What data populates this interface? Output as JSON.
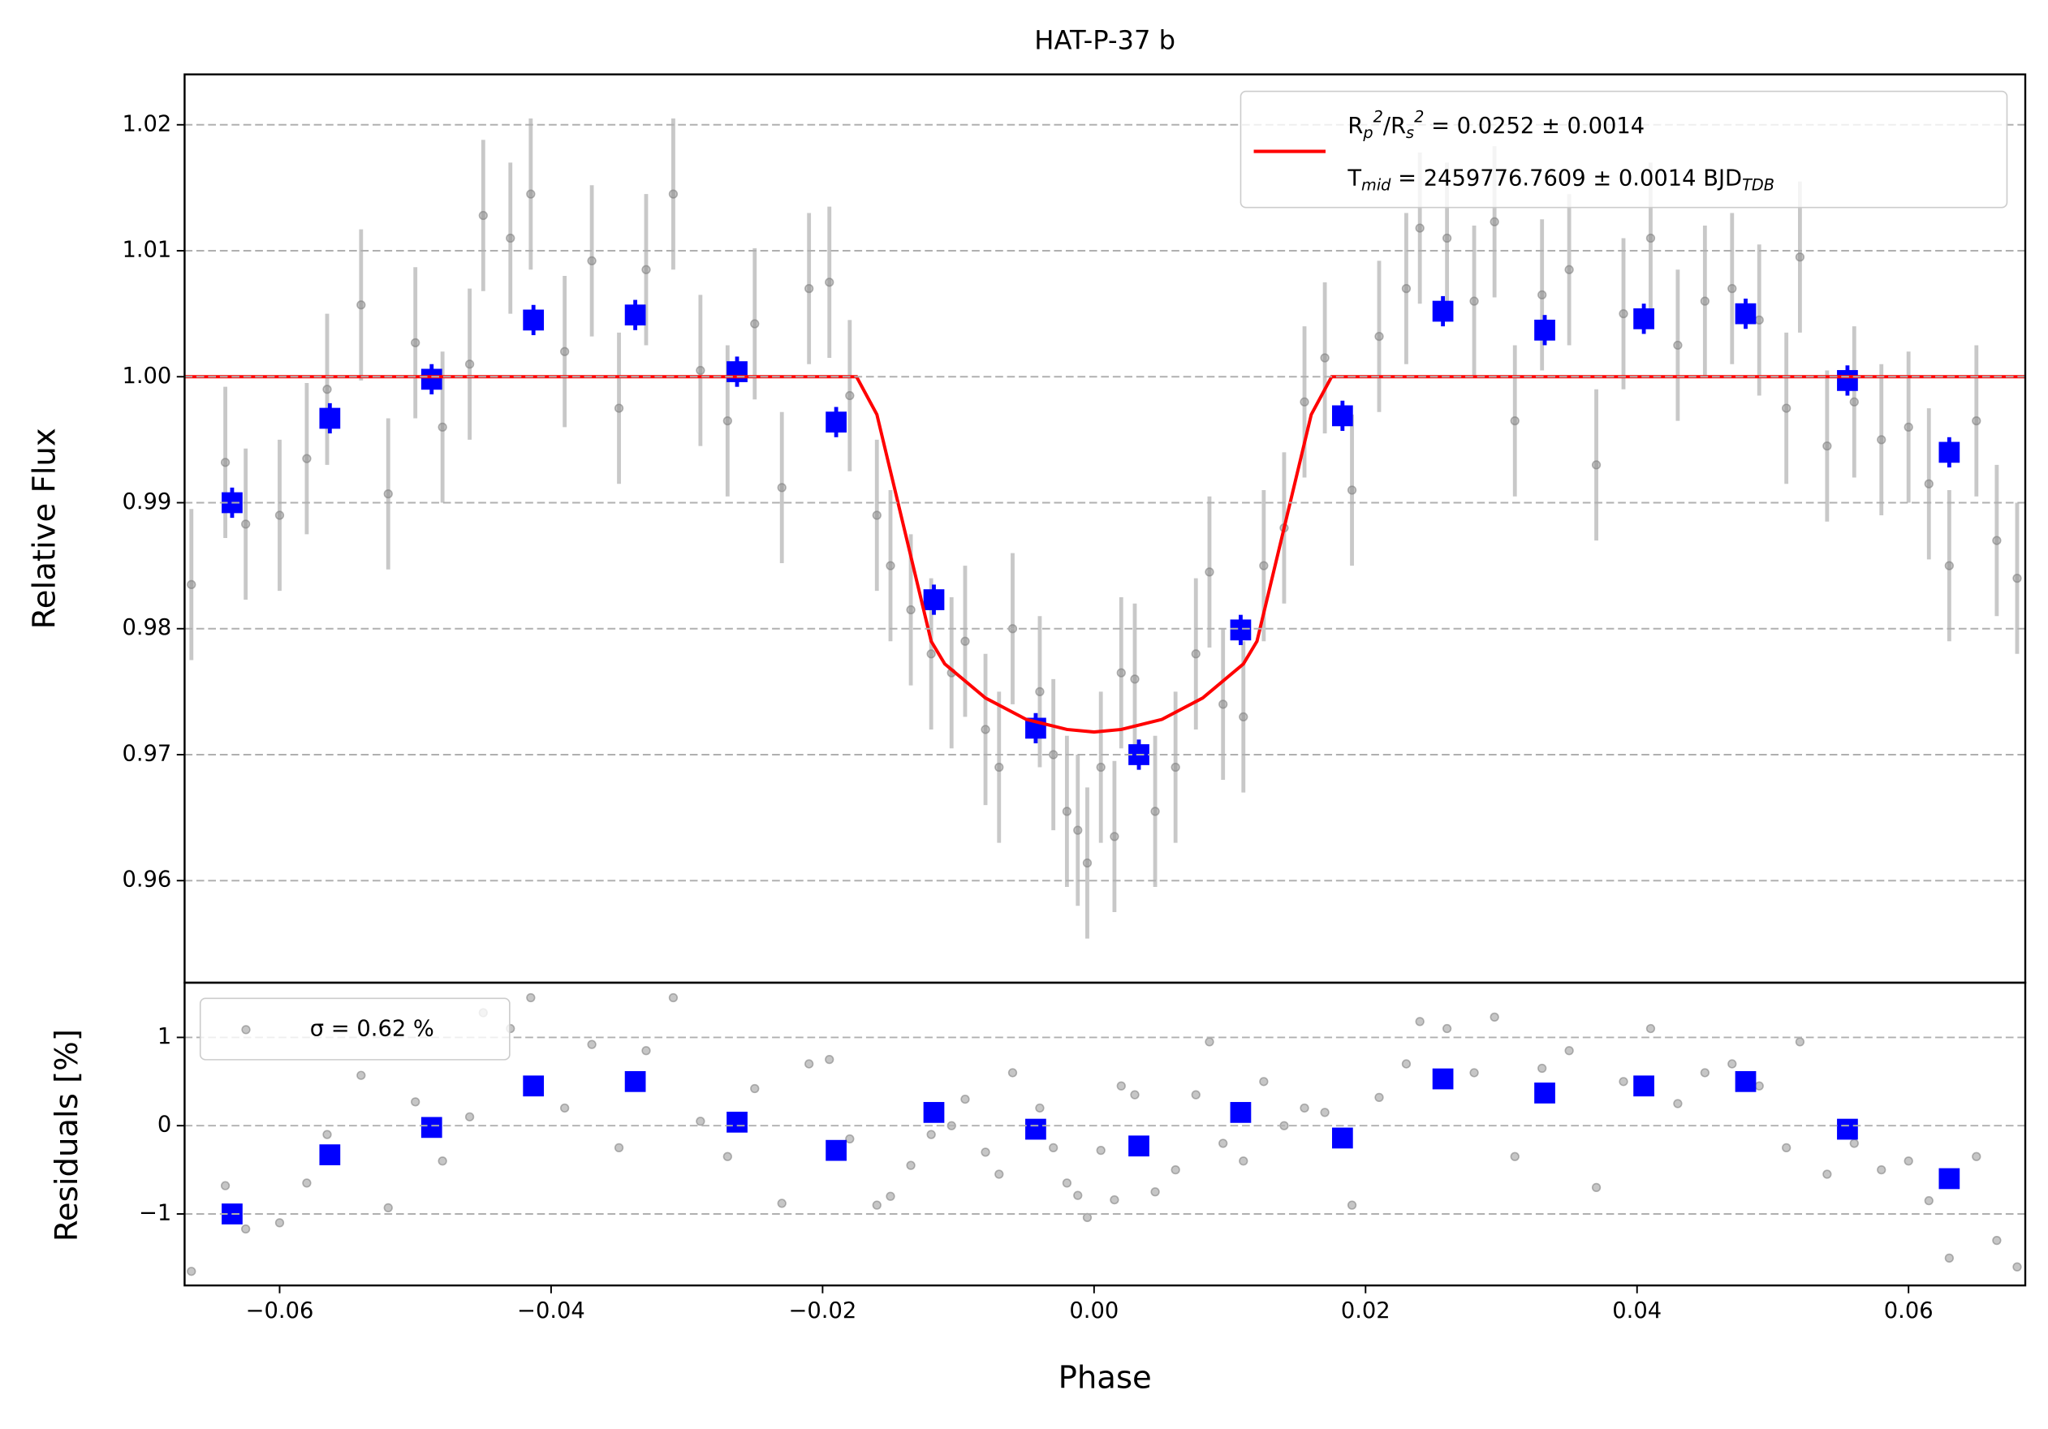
{
  "chart_data": [
    {
      "type": "scatter",
      "title": "HAT-P-37 b",
      "y_label": "Relative Flux",
      "xlim": [
        -0.067,
        0.0686
      ],
      "ylim": [
        0.9519,
        1.024
      ],
      "yticks": [
        0.96,
        0.97,
        0.98,
        0.99,
        {
          "value": 1,
          "label": "1.00"
        },
        1.01,
        1.02
      ],
      "grid": true,
      "legend_label": [
        "R_p^2/R_s^2 = 0.0252 ± 0.0014",
        "T_{mid} = 2459776.7609 ± 0.0014 BJD_{TDB}"
      ],
      "legend_corner": "upper right",
      "series": [
        {
          "kind": "errorbar",
          "marker": "circle",
          "color": "#808080",
          "error": 0.006,
          "x": [
            -0.0665,
            -0.064,
            -0.0625,
            -0.06,
            -0.058,
            -0.0565,
            -0.054,
            -0.052,
            -0.05,
            -0.048,
            -0.046,
            -0.045,
            -0.043,
            -0.0415,
            -0.039,
            -0.037,
            -0.035,
            -0.033,
            -0.031,
            -0.029,
            -0.027,
            -0.025,
            -0.023,
            -0.021,
            -0.0195,
            -0.018,
            -0.016,
            -0.015,
            -0.0135,
            -0.012,
            -0.0105,
            -0.0095,
            -0.008,
            -0.007,
            -0.006,
            -0.004,
            -0.003,
            -0.002,
            -0.0012,
            -0.0005,
            0.0005,
            0.0015,
            0.002,
            0.003,
            0.0045,
            0.006,
            0.0075,
            0.0085,
            0.0095,
            0.011,
            0.0125,
            0.014,
            0.0155,
            0.017,
            0.019,
            0.021,
            0.023,
            0.024,
            0.026,
            0.028,
            0.0295,
            0.031,
            0.033,
            0.035,
            0.037,
            0.039,
            0.041,
            0.043,
            0.045,
            0.047,
            0.049,
            0.051,
            0.052,
            0.054,
            0.056,
            0.058,
            0.06,
            0.0615,
            0.063,
            0.065,
            0.0665,
            0.068
          ],
          "values": [
            0.9835,
            0.9932,
            0.9883,
            0.989,
            0.9935,
            0.999,
            1.0057,
            0.9907,
            1.0027,
            0.996,
            1.001,
            1.0128,
            1.011,
            1.0145,
            1.002,
            1.0092,
            0.9975,
            1.0085,
            1.0145,
            1.0005,
            0.9965,
            1.0042,
            0.9912,
            1.007,
            1.0075,
            0.9985,
            0.989,
            0.985,
            0.9815,
            0.978,
            0.9765,
            0.979,
            0.972,
            0.969,
            0.98,
            0.975,
            0.97,
            0.9655,
            0.964,
            0.9614,
            0.969,
            0.9635,
            0.9765,
            0.976,
            0.9655,
            0.969,
            0.978,
            0.9845,
            0.974,
            0.973,
            0.985,
            0.988,
            0.998,
            1.0015,
            0.991,
            1.0032,
            1.007,
            1.0118,
            1.011,
            1.006,
            1.0123,
            0.9965,
            1.0065,
            1.0085,
            0.993,
            1.005,
            1.011,
            1.0025,
            1.006,
            1.007,
            1.0045,
            0.9975,
            1.0095,
            0.9945,
            0.998,
            0.995,
            0.996,
            0.9915,
            0.985,
            0.9965,
            0.987,
            0.984
          ]
        },
        {
          "kind": "errorbar",
          "marker": "square",
          "color": "#0000ff",
          "error": 0.0012,
          "x": [
            -0.0635,
            -0.0563,
            -0.0488,
            -0.0413,
            -0.0338,
            -0.0263,
            -0.019,
            -0.0118,
            -0.0043,
            0.0033,
            0.0108,
            0.0183,
            0.0257,
            0.0332,
            0.0405,
            0.048,
            0.0555,
            0.063
          ],
          "values": [
            0.99,
            0.9967,
            0.9998,
            1.0045,
            1.0049,
            1.0004,
            0.9964,
            0.9823,
            0.9721,
            0.97,
            0.9799,
            0.9969,
            1.0052,
            1.0037,
            1.0046,
            1.005,
            0.9997,
            0.994
          ]
        },
        {
          "kind": "line",
          "color": "#ff0000",
          "x": [
            -0.067,
            -0.0175,
            -0.016,
            -0.014,
            -0.012,
            -0.011,
            -0.008,
            -0.005,
            -0.002,
            0,
            0.002,
            0.005,
            0.008,
            0.011,
            0.012,
            0.014,
            0.016,
            0.0175,
            0.0686
          ],
          "values": [
            1,
            1,
            0.997,
            0.988,
            0.979,
            0.9772,
            0.9745,
            0.9728,
            0.972,
            0.9718,
            0.972,
            0.9728,
            0.9745,
            0.9772,
            0.979,
            0.988,
            0.997,
            1,
            1
          ]
        }
      ]
    },
    {
      "type": "scatter",
      "y_label": "Residuals [%]",
      "x_label": "Phase",
      "xlim": [
        -0.067,
        0.0686
      ],
      "ylim": [
        -1.81,
        1.62
      ],
      "xticks": [
        {
          "value": -0.06,
          "label": "−0.06"
        },
        {
          "value": -0.04,
          "label": "−0.04"
        },
        {
          "value": -0.02,
          "label": "−0.02"
        },
        {
          "value": 0,
          "label": "0.00"
        },
        0.02,
        0.04,
        0.06
      ],
      "yticks": [
        {
          "value": -1,
          "label": "−1"
        },
        0,
        1
      ],
      "grid": true,
      "legend_corner": "upper left",
      "series": [
        {
          "kind": "scatter",
          "marker": "circle",
          "color": "#808080",
          "name": "σ = 0.62 %",
          "x": [
            -0.0665,
            -0.064,
            -0.0625,
            -0.06,
            -0.058,
            -0.0565,
            -0.054,
            -0.052,
            -0.05,
            -0.048,
            -0.046,
            -0.045,
            -0.043,
            -0.0415,
            -0.039,
            -0.037,
            -0.035,
            -0.033,
            -0.031,
            -0.029,
            -0.027,
            -0.025,
            -0.023,
            -0.021,
            -0.0195,
            -0.018,
            -0.016,
            -0.015,
            -0.0135,
            -0.012,
            -0.0105,
            -0.0095,
            -0.008,
            -0.007,
            -0.006,
            -0.004,
            -0.003,
            -0.002,
            -0.0012,
            -0.0005,
            0.0005,
            0.0015,
            0.002,
            0.003,
            0.0045,
            0.006,
            0.0075,
            0.0085,
            0.0095,
            0.011,
            0.0125,
            0.014,
            0.0155,
            0.017,
            0.019,
            0.021,
            0.023,
            0.024,
            0.026,
            0.028,
            0.0295,
            0.031,
            0.033,
            0.035,
            0.037,
            0.039,
            0.041,
            0.043,
            0.045,
            0.047,
            0.049,
            0.051,
            0.052,
            0.054,
            0.056,
            0.058,
            0.06,
            0.0615,
            0.063,
            0.065,
            0.0665,
            0.068
          ],
          "values": [
            -1.65,
            -0.68,
            -1.17,
            -1.1,
            -0.65,
            -0.1,
            0.57,
            -0.93,
            0.27,
            -0.4,
            0.1,
            1.28,
            1.1,
            1.45,
            0.2,
            0.92,
            -0.25,
            0.85,
            1.45,
            0.05,
            -0.35,
            0.42,
            -0.88,
            0.7,
            0.75,
            -0.15,
            -0.9,
            -0.8,
            -0.45,
            -0.1,
            0,
            0.3,
            -0.3,
            -0.55,
            0.6,
            0.2,
            -0.25,
            -0.65,
            -0.79,
            -1.04,
            -0.28,
            -0.84,
            0.45,
            0.35,
            -0.75,
            -0.5,
            0.35,
            0.95,
            -0.2,
            -0.4,
            0.5,
            0,
            0.2,
            0.15,
            -0.9,
            0.32,
            0.7,
            1.18,
            1.1,
            0.6,
            1.23,
            -0.35,
            0.65,
            0.85,
            -0.7,
            0.5,
            1.1,
            0.25,
            0.6,
            0.7,
            0.45,
            -0.25,
            0.95,
            -0.55,
            -0.2,
            -0.5,
            -0.4,
            -0.85,
            -1.5,
            -0.35,
            -1.3,
            -1.6
          ]
        },
        {
          "kind": "scatter",
          "marker": "square",
          "color": "#0000ff",
          "x": [
            -0.0635,
            -0.0563,
            -0.0488,
            -0.0413,
            -0.0338,
            -0.0263,
            -0.019,
            -0.0118,
            -0.0043,
            0.0033,
            0.0108,
            0.0183,
            0.0257,
            0.0332,
            0.0405,
            0.048,
            0.0555,
            0.063
          ],
          "values": [
            -1,
            -0.33,
            -0.02,
            0.45,
            0.5,
            0.04,
            -0.28,
            0.15,
            -0.04,
            -0.23,
            0.15,
            -0.14,
            0.53,
            0.37,
            0.45,
            0.5,
            -0.04,
            -0.6
          ]
        }
      ]
    }
  ]
}
